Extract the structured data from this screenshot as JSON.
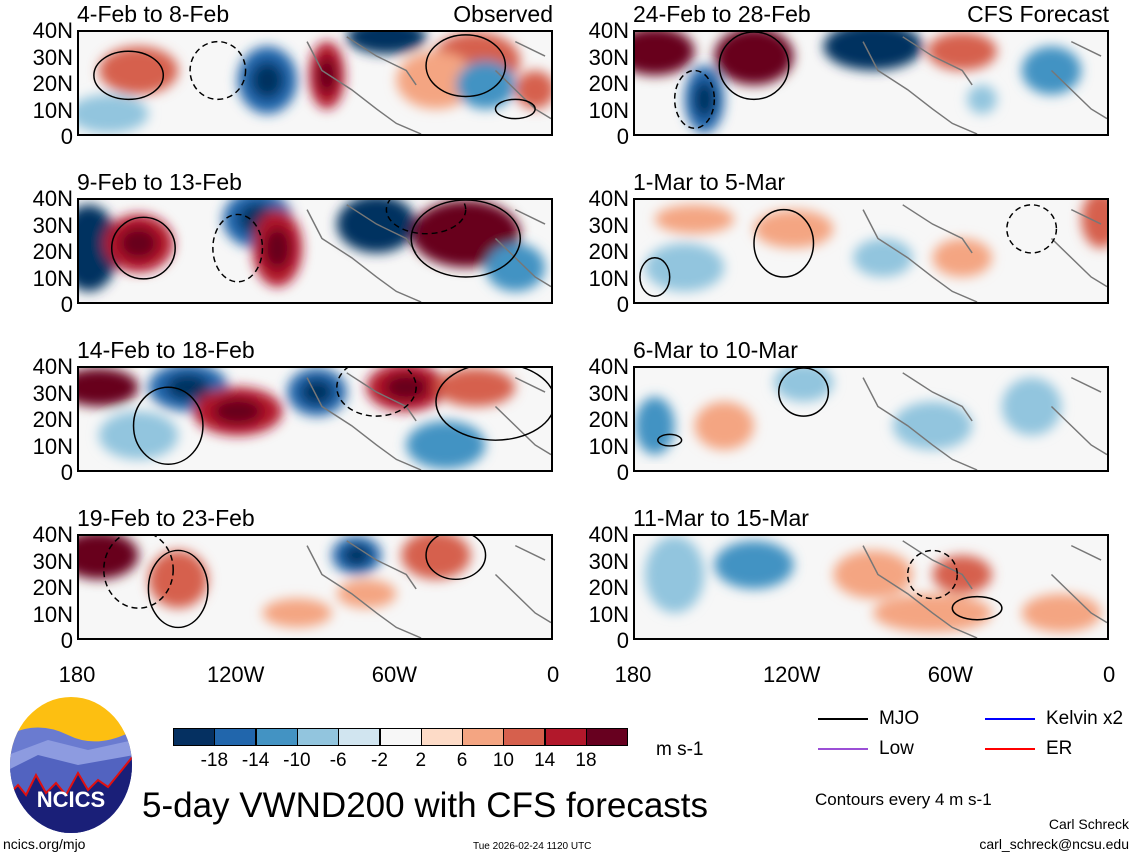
{
  "panels": [
    {
      "title": "4-Feb to 8-Feb",
      "tag": "Observed"
    },
    {
      "title": "24-Feb to 28-Feb",
      "tag": "CFS Forecast"
    },
    {
      "title": "9-Feb to 13-Feb",
      "tag": ""
    },
    {
      "title": "1-Mar to 5-Mar",
      "tag": ""
    },
    {
      "title": "14-Feb to 18-Feb",
      "tag": ""
    },
    {
      "title": "6-Mar to 10-Mar",
      "tag": ""
    },
    {
      "title": "19-Feb to 23-Feb",
      "tag": ""
    },
    {
      "title": "11-Mar to 15-Mar",
      "tag": ""
    }
  ],
  "y_labels": [
    "40N",
    "30N",
    "20N",
    "10N",
    "0"
  ],
  "x_labels": [
    "180",
    "120W",
    "60W",
    "0"
  ],
  "colorbar": {
    "labels": [
      "-18",
      "-14",
      "-10",
      "-6",
      "-2",
      "2",
      "6",
      "10",
      "14",
      "18"
    ],
    "colors": [
      "#053061",
      "#2166ac",
      "#4393c3",
      "#92c5de",
      "#d1e5f0",
      "#f7f7f7",
      "#fddbc7",
      "#f4a582",
      "#d6604d",
      "#b2182b",
      "#67001f"
    ],
    "units": "m s-1"
  },
  "legend": {
    "mjo": "MJO",
    "kelvin": "Kelvin x2",
    "low": "Low",
    "er": "ER",
    "mjo_color": "#000000",
    "kelvin_color": "#0000ff",
    "low_color": "#9b4fd6",
    "er_color": "#ff0000",
    "contours": "Contours every 4 m s-1"
  },
  "title": "5-day VWND200 with CFS forecasts",
  "logo_text": "NCICS",
  "footer": {
    "url": "ncics.org/mjo",
    "timestamp": "Tue 2026-02-24 1120 UTC",
    "author": "Carl Schreck",
    "email": "carl_schreck@ncsu.edu"
  }
}
